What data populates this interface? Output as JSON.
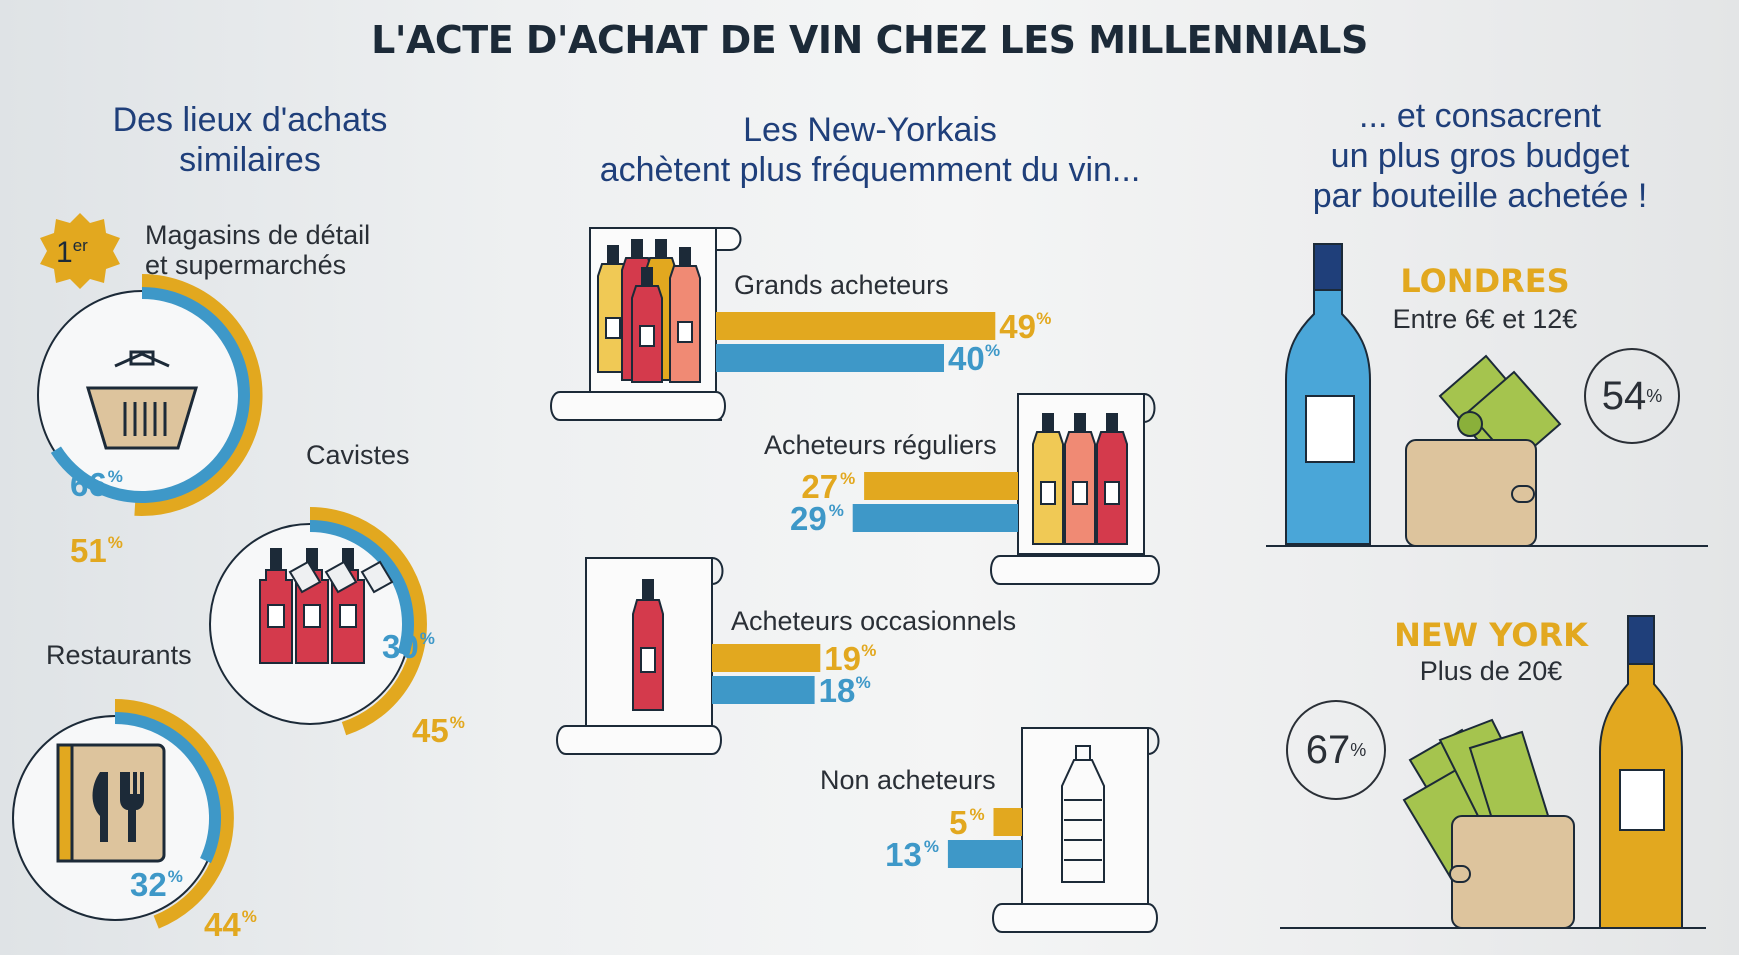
{
  "title": "L'ACTE D'ACHAT DE VIN CHEZ LES MILLENNIALS",
  "colors": {
    "london": "#e2a81f",
    "newyork": "#3e98c8",
    "ink": "#1f3f7a"
  },
  "left": {
    "heading": [
      "Des lieux d'achats",
      "similaires"
    ],
    "rank_badge": {
      "num": "1",
      "sup": "er"
    },
    "items": [
      {
        "label": [
          "Magasins de détail",
          "et supermarchés"
        ],
        "london": 51,
        "newyork": 66,
        "icon": "basket-icon"
      },
      {
        "label": [
          "Cavistes"
        ],
        "london": 45,
        "newyork": 30,
        "icon": "wine-bottles-icon"
      },
      {
        "label": [
          "Restaurants"
        ],
        "london": 44,
        "newyork": 32,
        "icon": "menu-cutlery-icon"
      }
    ]
  },
  "chart_data": {
    "type": "bar",
    "title": "Les New-Yorkais achètent plus fréquemment du vin...",
    "categories": [
      "Grands acheteurs",
      "Acheteurs réguliers",
      "Acheteurs occasionnels",
      "Non acheteurs"
    ],
    "series": [
      {
        "color": "#e2a81f",
        "values": [
          49,
          27,
          19,
          5
        ]
      },
      {
        "color": "#3e98c8",
        "values": [
          40,
          29,
          18,
          13
        ]
      }
    ],
    "unit": "%"
  },
  "middle": {
    "heading": [
      "Les New-Yorkais",
      "achètent plus fréquemment du vin..."
    ]
  },
  "right": {
    "heading": [
      "... et consacrent",
      "un plus gros budget",
      "par bouteille achetée !"
    ],
    "cities": [
      {
        "name": "LONDRES",
        "range": "Entre 6€ et 12€",
        "percent": 54
      },
      {
        "name": "NEW YORK",
        "range": "Plus de 20€",
        "percent": 67
      }
    ]
  }
}
